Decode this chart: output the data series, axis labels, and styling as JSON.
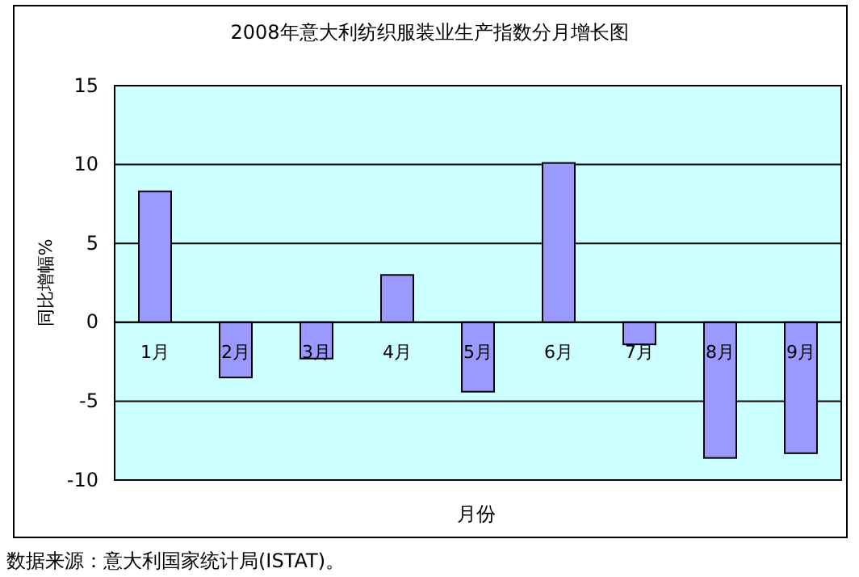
{
  "chart_data": {
    "type": "bar",
    "title": "2008年意大利纺织服装业生产指数分月增长图",
    "xlabel": "月份",
    "ylabel": "同比增幅%",
    "categories": [
      "1月",
      "2月",
      "3月",
      "4月",
      "5月",
      "6月",
      "7月",
      "8月",
      "9月"
    ],
    "values": [
      8.3,
      -3.5,
      -2.3,
      3.0,
      -4.4,
      10.1,
      -1.4,
      -8.6,
      -8.3
    ],
    "color": "#9999ff",
    "ylim": [
      -10,
      15
    ],
    "yticks": [
      -10,
      -5,
      0,
      5,
      10,
      15
    ],
    "grid": "y",
    "annotations": [
      "数据来源：意大利国家统计局(ISTAT)。"
    ]
  }
}
